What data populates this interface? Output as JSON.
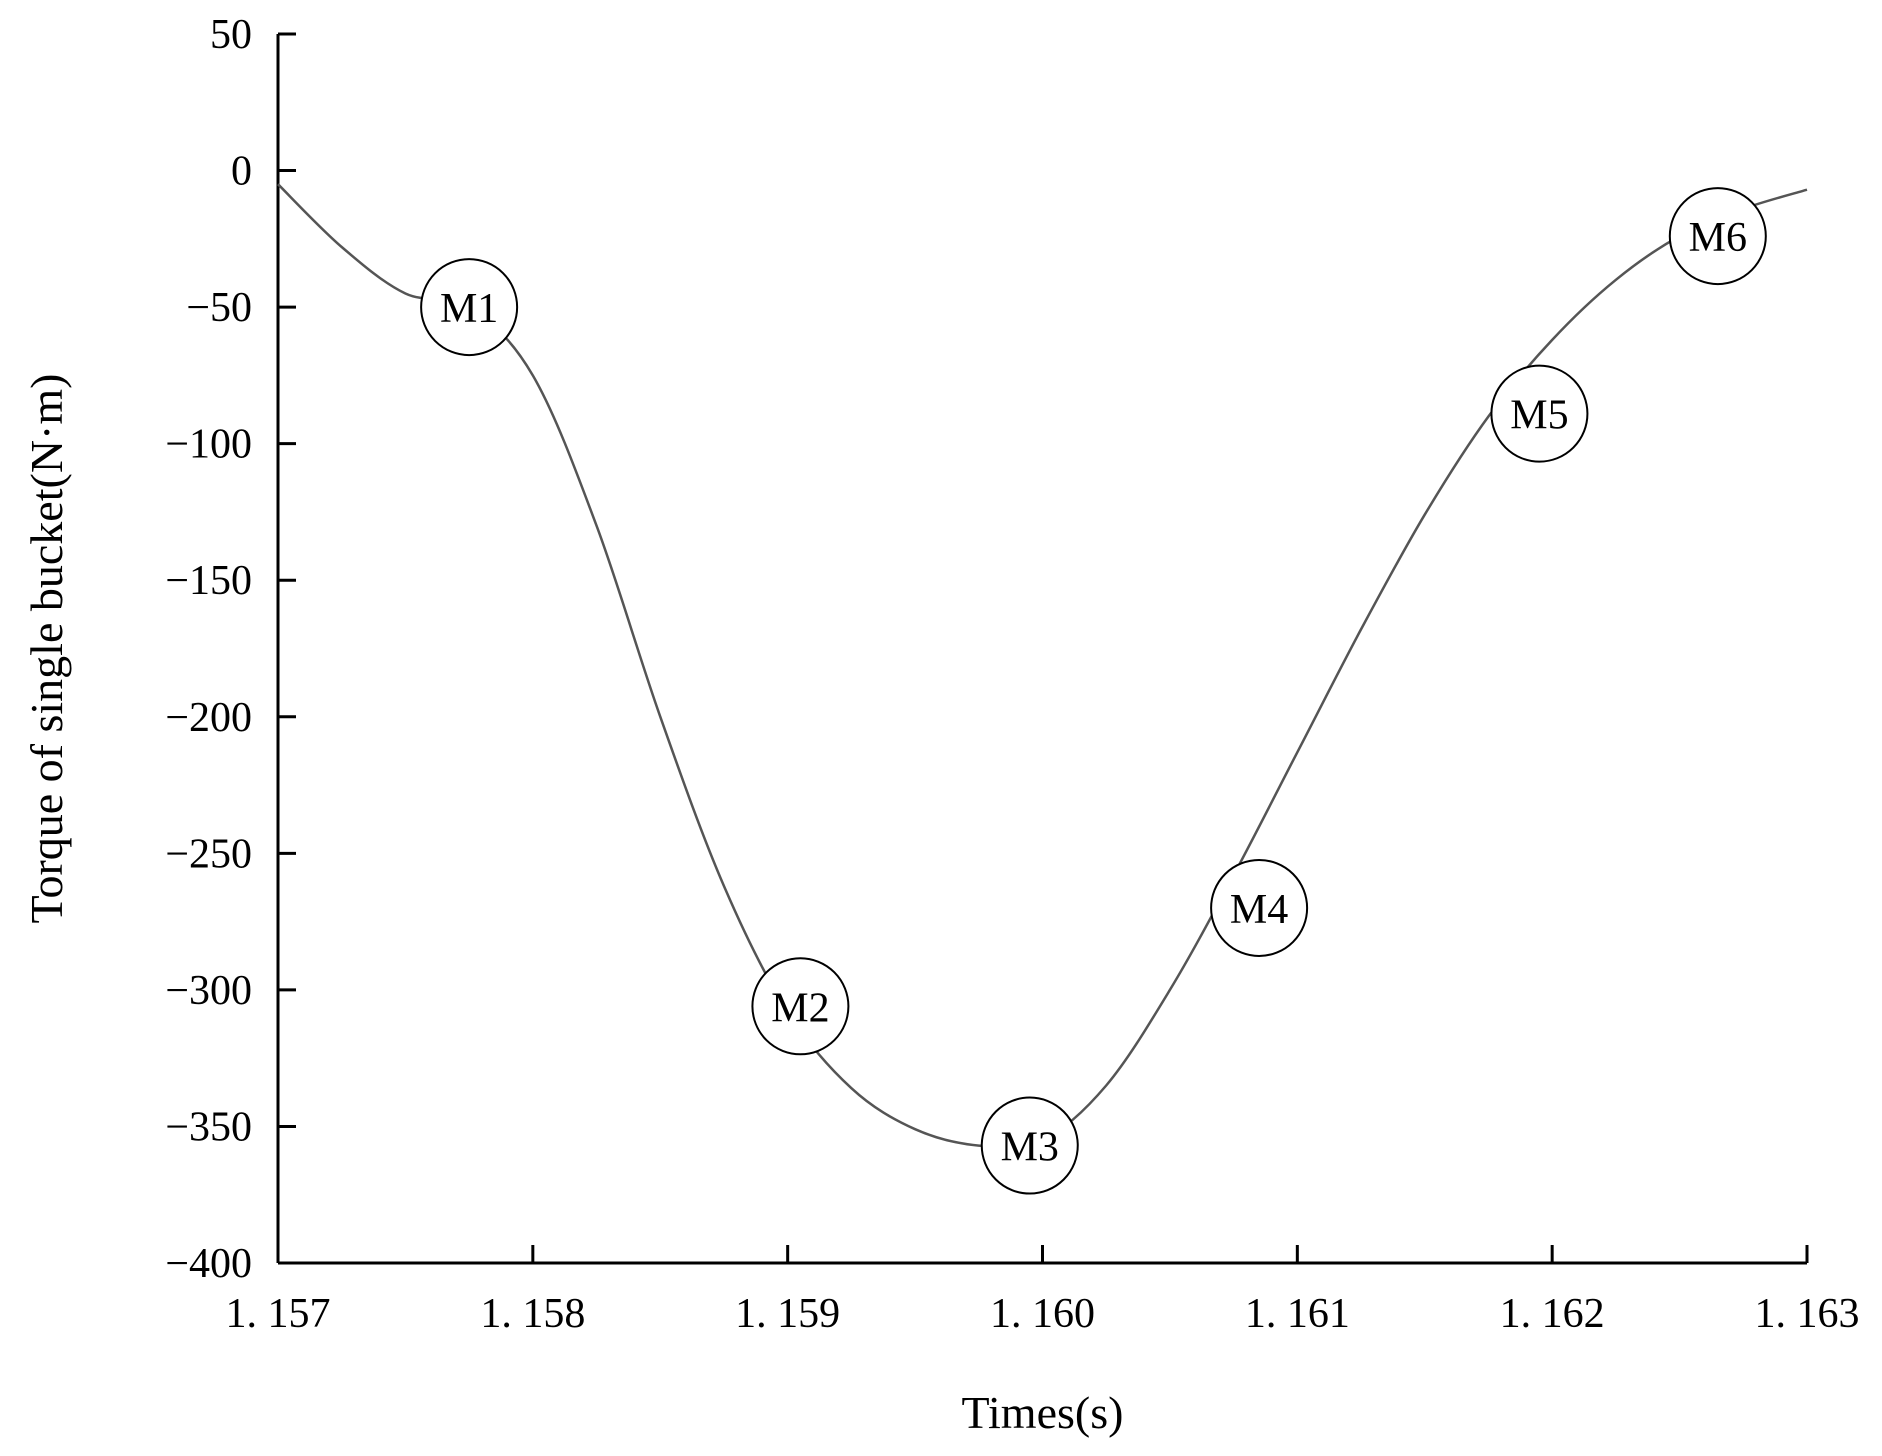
{
  "chart_data": {
    "type": "line",
    "title": "",
    "xlabel": "Times(s)",
    "ylabel": "Torque of single bucket(N·m)",
    "xlim": [
      1.157,
      1.163
    ],
    "ylim": [
      -400,
      50
    ],
    "x_ticks": [
      1.157,
      1.158,
      1.159,
      1.16,
      1.161,
      1.162,
      1.163
    ],
    "x_tick_labels": [
      "1. 157",
      "1. 158",
      "1. 159",
      "1. 160",
      "1. 161",
      "1. 162",
      "1. 163"
    ],
    "y_ticks": [
      50,
      0,
      -50,
      -100,
      -150,
      -200,
      -250,
      -300,
      -350,
      -400
    ],
    "y_tick_labels": [
      "50",
      "0",
      "−50",
      "−100",
      "−150",
      "−200",
      "−250",
      "−300",
      "−350",
      "−400"
    ],
    "grid": false,
    "line_color": "#555555",
    "series": [
      {
        "x": [
          1.157,
          1.15725,
          1.1575,
          1.15775,
          1.158,
          1.15825,
          1.1585,
          1.15875,
          1.159,
          1.15925,
          1.1595,
          1.15975,
          1.16,
          1.16025,
          1.1605,
          1.16075,
          1.161,
          1.16125,
          1.1615,
          1.16175,
          1.162,
          1.16225,
          1.1625,
          1.16275,
          1.163
        ],
        "y": [
          -5,
          -28,
          -45,
          -50,
          -75,
          -130,
          -200,
          -262,
          -308,
          -336,
          -351,
          -357,
          -355,
          -335,
          -300,
          -258,
          -213,
          -168,
          -126,
          -90,
          -62,
          -40,
          -24,
          -14,
          -7
        ]
      }
    ],
    "annotations": [
      {
        "label": "M1",
        "x": 1.15775,
        "y": -50
      },
      {
        "label": "M2",
        "x": 1.15905,
        "y": -306
      },
      {
        "label": "M3",
        "x": 1.15995,
        "y": -357
      },
      {
        "label": "M4",
        "x": 1.16085,
        "y": -270
      },
      {
        "label": "M5",
        "x": 1.16195,
        "y": -89
      },
      {
        "label": "M6",
        "x": 1.16265,
        "y": -24
      }
    ]
  }
}
